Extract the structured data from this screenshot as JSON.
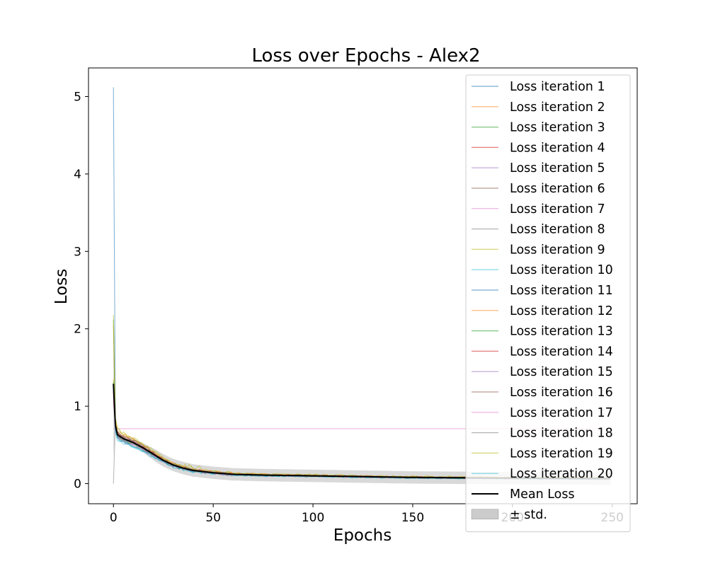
{
  "chart_data": {
    "type": "line",
    "title": "Loss over Epochs - Alex2",
    "xlabel": "Epochs",
    "ylabel": "Loss",
    "xlim": [
      -12.5,
      262.5
    ],
    "ylim": [
      -0.26,
      5.37
    ],
    "xticks": [
      0,
      50,
      100,
      150,
      200,
      250
    ],
    "yticks": [
      0,
      1,
      2,
      3,
      4,
      5
    ],
    "grid": false,
    "legend_position": "upper right",
    "epochs": 250,
    "anchors": {
      "x": [
        0,
        1,
        2,
        5,
        10,
        15,
        20,
        25,
        30,
        35,
        40,
        50,
        60,
        75,
        100,
        125,
        150,
        175,
        200,
        225,
        249
      ],
      "mean": [
        1.29,
        0.75,
        0.63,
        0.58,
        0.53,
        0.46,
        0.38,
        0.3,
        0.24,
        0.2,
        0.17,
        0.14,
        0.12,
        0.11,
        0.1,
        0.09,
        0.08,
        0.075,
        0.07,
        0.068,
        0.065
      ]
    },
    "series": [
      {
        "name": "Loss iteration 1",
        "color": "#1f77b4",
        "start": 5.12,
        "scale": 1.0,
        "noise": 0.012
      },
      {
        "name": "Loss iteration 2",
        "color": "#ff7f0e",
        "start": 2.05,
        "scale": 1.05,
        "noise": 0.014
      },
      {
        "name": "Loss iteration 3",
        "color": "#2ca02c",
        "start": 2.12,
        "scale": 0.97,
        "noise": 0.012
      },
      {
        "name": "Loss iteration 4",
        "color": "#d62728",
        "start": 1.18,
        "scale": 1.02,
        "noise": 0.012
      },
      {
        "name": "Loss iteration 5",
        "color": "#9467bd",
        "start": 1.22,
        "scale": 0.95,
        "noise": 0.011
      },
      {
        "name": "Loss iteration 6",
        "color": "#8c564b",
        "start": 1.05,
        "scale": 1.03,
        "noise": 0.012
      },
      {
        "name": "Loss iteration 7",
        "color": "#e377c2",
        "start": 0.71,
        "scale": 1.0,
        "noise": 0.0,
        "flat": 0.71
      },
      {
        "name": "Loss iteration 8",
        "color": "#7f7f7f",
        "start": 0.0,
        "scale": 1.04,
        "noise": 0.013
      },
      {
        "name": "Loss iteration 9",
        "color": "#bcbd22",
        "start": 2.18,
        "scale": 1.12,
        "noise": 0.02
      },
      {
        "name": "Loss iteration 10",
        "color": "#17becf",
        "start": 1.3,
        "scale": 0.9,
        "noise": 0.011
      },
      {
        "name": "Loss iteration 11",
        "color": "#1f77b4",
        "start": 1.25,
        "scale": 0.93,
        "noise": 0.011
      },
      {
        "name": "Loss iteration 12",
        "color": "#ff7f0e",
        "start": 1.12,
        "scale": 1.08,
        "noise": 0.013
      },
      {
        "name": "Loss iteration 13",
        "color": "#2ca02c",
        "start": 1.32,
        "scale": 0.96,
        "noise": 0.012
      },
      {
        "name": "Loss iteration 14",
        "color": "#d62728",
        "start": 1.15,
        "scale": 1.01,
        "noise": 0.012
      },
      {
        "name": "Loss iteration 15",
        "color": "#9467bd",
        "start": 1.2,
        "scale": 0.98,
        "noise": 0.012
      },
      {
        "name": "Loss iteration 16",
        "color": "#8c564b",
        "start": 1.28,
        "scale": 1.06,
        "noise": 0.013
      },
      {
        "name": "Loss iteration 17",
        "color": "#e377c2",
        "start": 1.1,
        "scale": 0.94,
        "noise": 0.011
      },
      {
        "name": "Loss iteration 18",
        "color": "#7f7f7f",
        "start": 1.2,
        "scale": 1.0,
        "noise": 0.012
      },
      {
        "name": "Loss iteration 19",
        "color": "#bcbd22",
        "start": 1.35,
        "scale": 1.1,
        "noise": 0.018
      },
      {
        "name": "Loss iteration 20",
        "color": "#17becf",
        "start": 1.25,
        "scale": 0.92,
        "noise": 0.011
      }
    ],
    "mean_series": {
      "name": "Mean Loss",
      "color": "#000000"
    },
    "std_band": {
      "name": "± std.",
      "color": "#bfbfbf"
    }
  }
}
